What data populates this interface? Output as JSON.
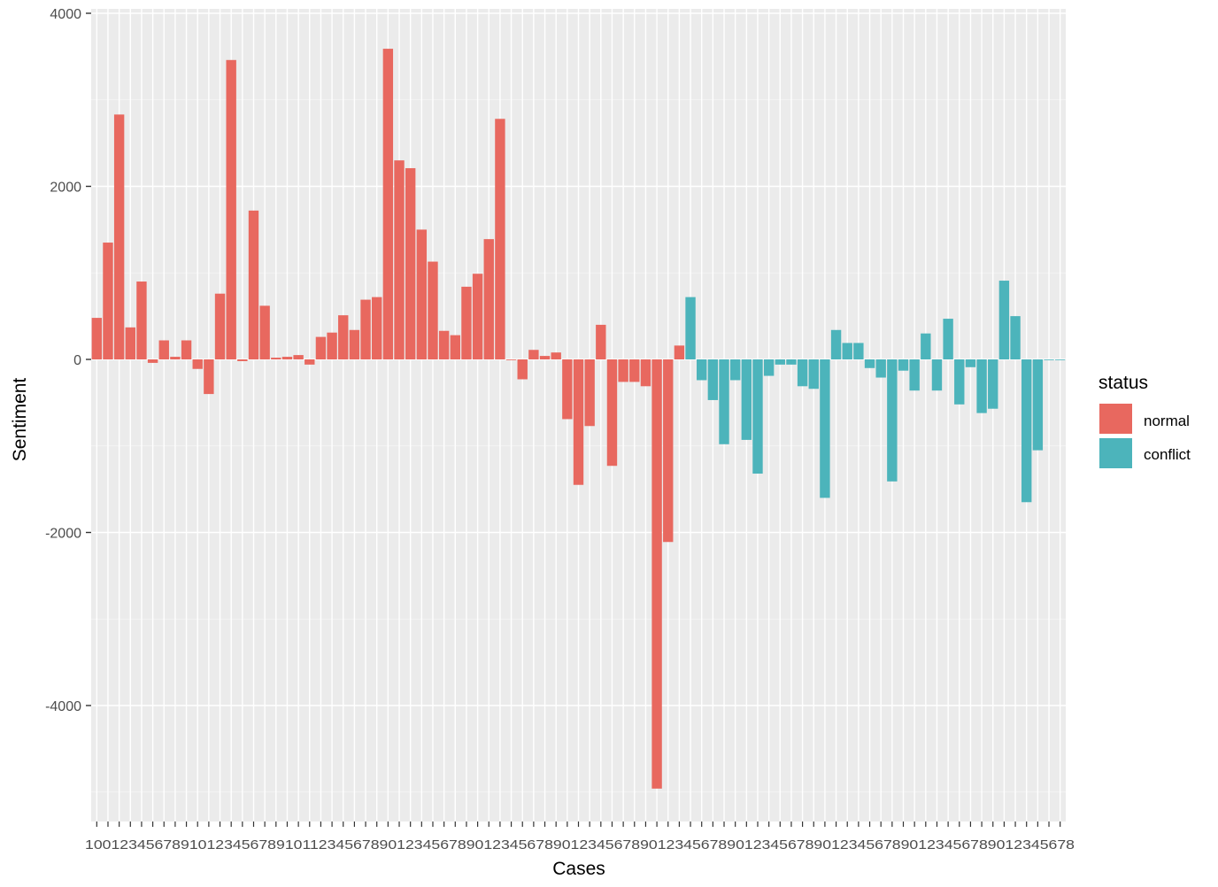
{
  "chart_data": {
    "type": "bar",
    "xlabel": "Cases",
    "ylabel": "Sentiment",
    "ylim": [
      -5000,
      4000
    ],
    "y_ticks": [
      -4000,
      -2000,
      0,
      2000,
      4000
    ],
    "grid": true,
    "legend": {
      "title": "status",
      "placement": "right",
      "entries": [
        {
          "name": "normal",
          "color": "#e8685f"
        },
        {
          "name": "conflict",
          "color": "#4cb4bb"
        }
      ]
    },
    "x_tick_text": "100123456789101234567891011234567890123456789012345678901234567890123456789012345678901234567890123456789012345678",
    "categories": [
      "1",
      "2",
      "3",
      "4",
      "5",
      "6",
      "7",
      "8",
      "9",
      "10",
      "11",
      "12",
      "13",
      "14",
      "15",
      "16",
      "17",
      "18",
      "19",
      "20",
      "21",
      "22",
      "23",
      "24",
      "25",
      "26",
      "27",
      "28",
      "29",
      "30",
      "31",
      "32",
      "33",
      "34",
      "35",
      "36",
      "37",
      "38",
      "39",
      "40",
      "41",
      "42",
      "43",
      "44",
      "45",
      "46",
      "47",
      "48",
      "49",
      "50",
      "51",
      "52",
      "53",
      "54",
      "55",
      "56",
      "57",
      "58",
      "59",
      "60",
      "61",
      "62",
      "63",
      "64",
      "65",
      "66",
      "67",
      "68",
      "69",
      "70",
      "71",
      "72",
      "73",
      "74",
      "75",
      "76",
      "77",
      "78",
      "79",
      "80",
      "81",
      "82",
      "83",
      "84",
      "85",
      "86",
      "87"
    ],
    "status": [
      "normal",
      "normal",
      "normal",
      "normal",
      "normal",
      "normal",
      "normal",
      "normal",
      "normal",
      "normal",
      "normal",
      "normal",
      "normal",
      "normal",
      "normal",
      "normal",
      "normal",
      "normal",
      "normal",
      "normal",
      "normal",
      "normal",
      "normal",
      "normal",
      "normal",
      "normal",
      "normal",
      "normal",
      "normal",
      "normal",
      "normal",
      "normal",
      "normal",
      "normal",
      "normal",
      "normal",
      "normal",
      "normal",
      "normal",
      "normal",
      "normal",
      "normal",
      "normal",
      "normal",
      "normal",
      "normal",
      "normal",
      "normal",
      "normal",
      "normal",
      "normal",
      "normal",
      "normal",
      "conflict",
      "conflict",
      "conflict",
      "conflict",
      "conflict",
      "conflict",
      "conflict",
      "conflict",
      "conflict",
      "conflict",
      "conflict",
      "conflict",
      "conflict",
      "conflict",
      "conflict",
      "conflict",
      "conflict",
      "conflict",
      "conflict",
      "conflict",
      "conflict",
      "conflict",
      "conflict",
      "conflict",
      "conflict",
      "conflict",
      "conflict",
      "conflict",
      "conflict",
      "conflict",
      "conflict",
      "conflict",
      "conflict",
      "conflict"
    ],
    "values": [
      480,
      1350,
      2830,
      370,
      900,
      -40,
      220,
      30,
      220,
      -110,
      -400,
      760,
      3460,
      -20,
      1720,
      620,
      20,
      30,
      50,
      -60,
      260,
      310,
      510,
      340,
      690,
      720,
      3590,
      2300,
      2210,
      1500,
      1130,
      330,
      280,
      840,
      990,
      1390,
      2780,
      0,
      -230,
      110,
      40,
      80,
      -690,
      -1450,
      -770,
      400,
      -1230,
      -260,
      -260,
      -310,
      -4960,
      -2110,
      160,
      720,
      -240,
      -470,
      -980,
      -240,
      -930,
      -1320,
      -190,
      -60,
      -60,
      -310,
      -340,
      -1600,
      340,
      190,
      190,
      -100,
      -210,
      -1410,
      -130,
      -360,
      300,
      -360,
      470,
      -520,
      -90,
      -620,
      -570,
      910,
      500,
      -1650,
      -1050,
      0,
      0
    ]
  }
}
